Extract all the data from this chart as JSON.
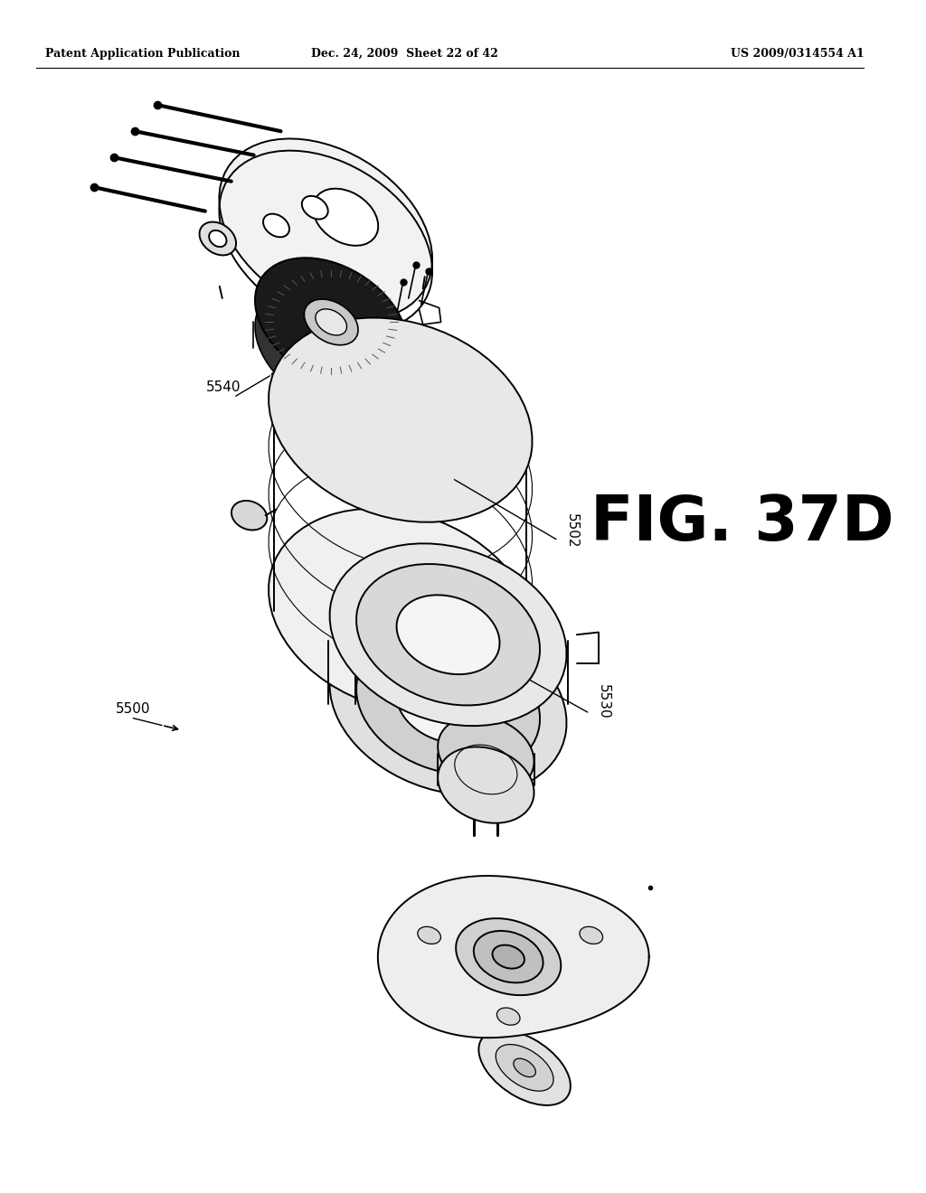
{
  "header_left": "Patent Application Publication",
  "header_center": "Dec. 24, 2009  Sheet 22 of 42",
  "header_right": "US 2009/0314554 A1",
  "fig_label": "FIG. 37D",
  "background": "#ffffff",
  "line_color": "#000000"
}
